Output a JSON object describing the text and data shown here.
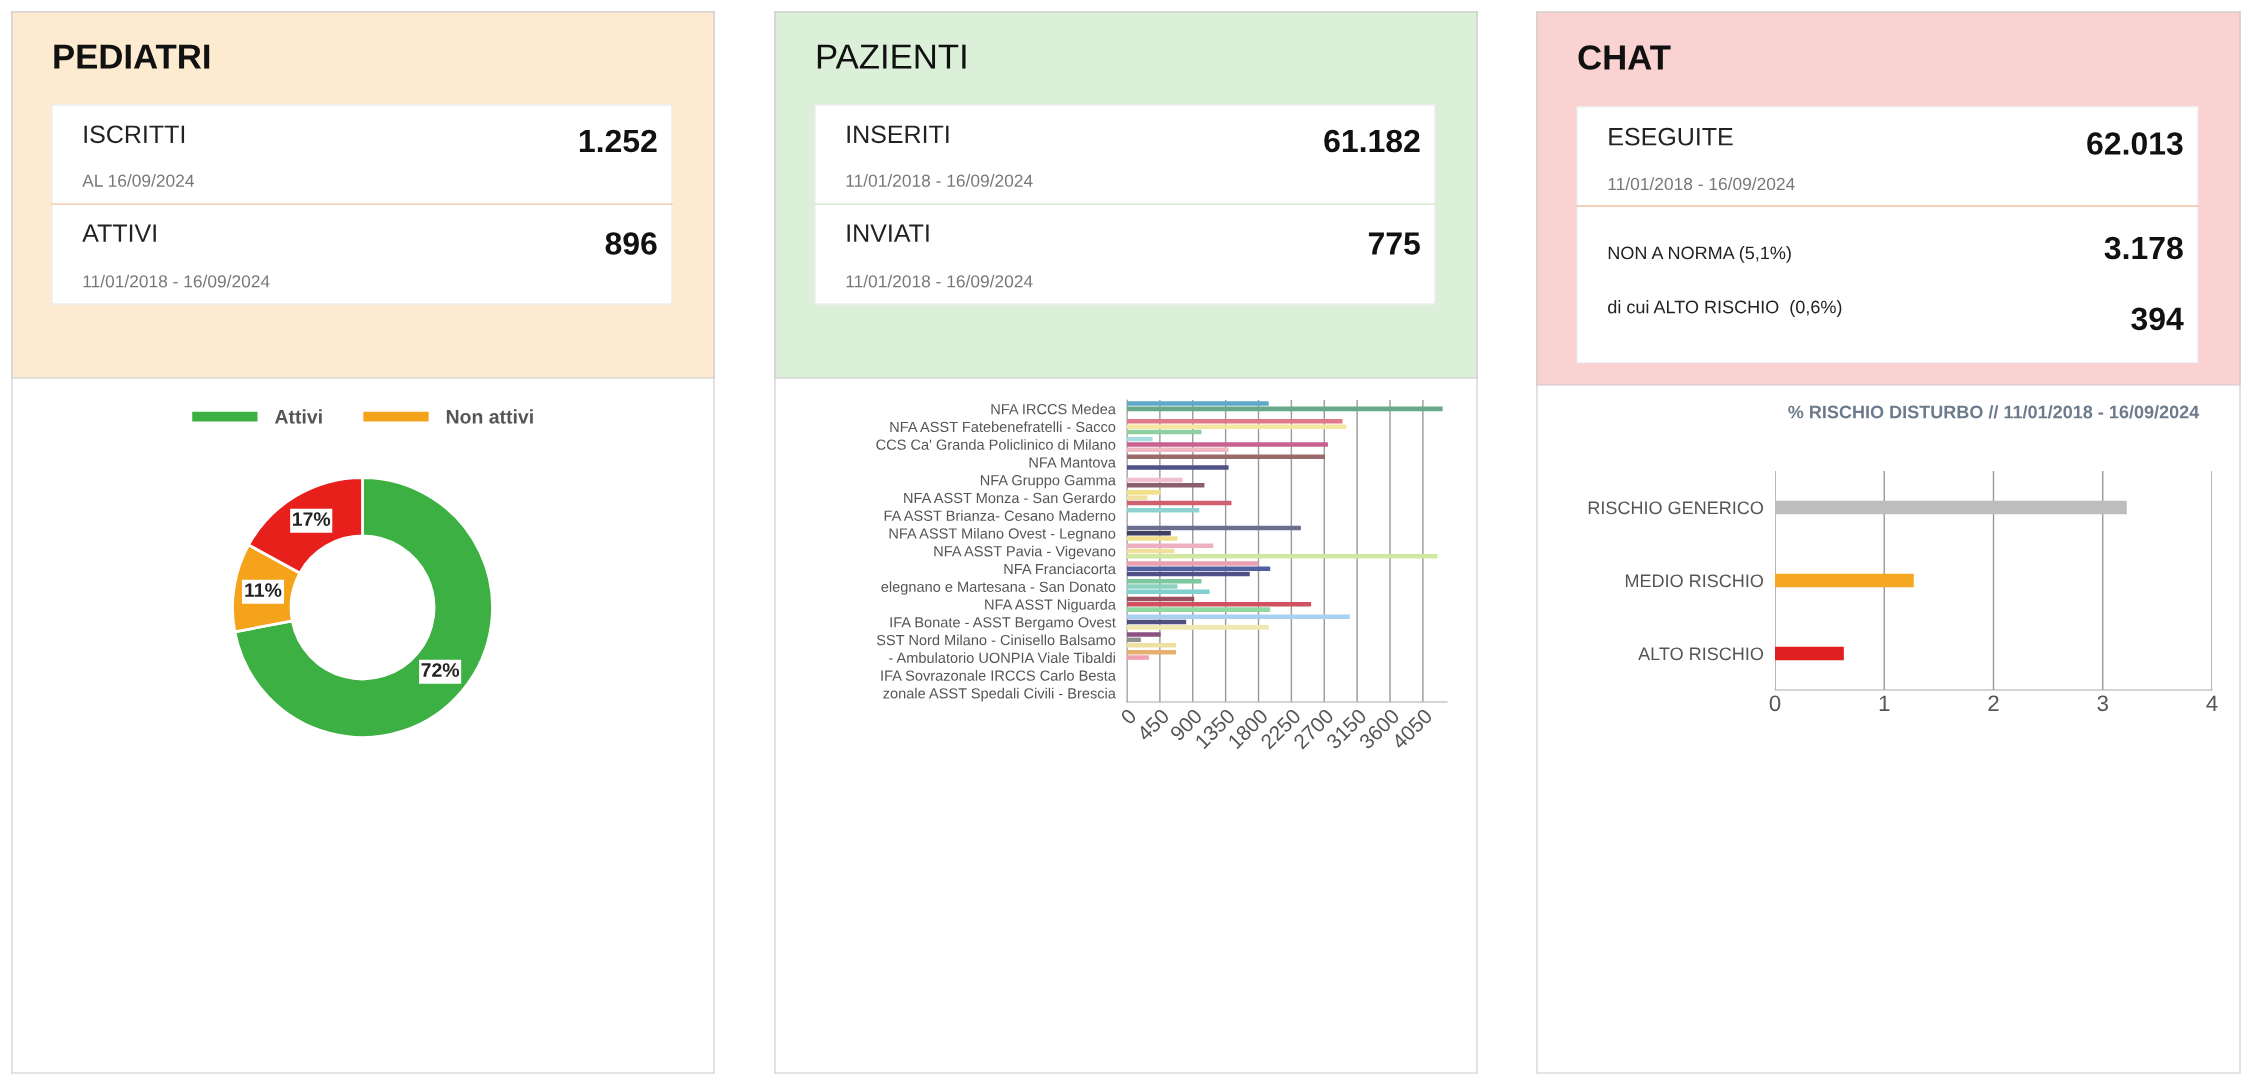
{
  "chart_data": [
    {
      "type": "other",
      "title": "PEDIATRI",
      "annotations": [
        "ISCRITTI",
        "1.252",
        "AL 16/09/2024",
        "ATTIVI",
        "896",
        "11/01/2018 - 16/09/2024"
      ]
    },
    {
      "type": "donut",
      "categories": [
        "Attivi",
        "Non attivi",
        null
      ],
      "values": [
        72,
        11,
        17
      ],
      "colors": [
        "#3cb043",
        "#f5a31a",
        "#e8201c"
      ],
      "value_labels": [
        "72%",
        "11%",
        "17%"
      ],
      "legend": "top"
    },
    {
      "type": "other",
      "title": "PAZIENTI",
      "annotations": [
        "INSERITI",
        "61.182",
        "11/01/2018 - 16/09/2024",
        "INVIATI",
        "775",
        "11/01/2018 - 16/09/2024"
      ]
    },
    {
      "type": "bar",
      "orientation": "horizontal",
      "categories": [
        "NFA IRCCS Medea",
        "NFA ASST Fatebenefratelli - Sacco",
        "CCS Ca' Granda Policlinico di Milano",
        "NFA Mantova",
        "NFA Gruppo Gamma",
        "NFA ASST Monza - San Gerardo",
        "FA ASST Brianza- Cesano Maderno",
        "NFA ASST Milano Ovest - Legnano",
        "NFA ASST Pavia - Vigevano",
        "NFA Franciacorta",
        "elegnano e Martesana - San Donato",
        "NFA ASST Niguarda",
        "IFA Bonate - ASST Bergamo Ovest",
        "SST Nord Milano - Cinisello Balsamo",
        "- Ambulatorio UONPIA Viale Tibaldi",
        "IFA Sovrazonale IRCCS Carlo Besta",
        "zonale ASST Spedali Civili - Brescia"
      ],
      "series": [
        {
          "values": [
            1940,
            2950,
            350,
            2710,
            null,
            460,
            990,
            2380,
            1180,
            1800,
            1020,
            920,
            3050,
            460,
            670,
            null,
            null
          ],
          "colors": [
            "#5fa8c8",
            "#e07a8a",
            "#a8dde0",
            "#9b6b6b",
            "#cccccc",
            "#f3e08a",
            "#8fd3d0",
            "#6b6f8f",
            "#eeb0c0",
            "#e8a0b0",
            "#7cc8a0",
            "#9b5060",
            "#a8d0f0",
            "#8a5080",
            "#e8b070",
            "#cccccc",
            "#cccccc"
          ]
        },
        {
          "values": [
            4320,
            3000,
            2750,
            null,
            760,
            280,
            null,
            600,
            650,
            1960,
            690,
            2520,
            810,
            190,
            300,
            null,
            null
          ],
          "colors": [
            "#6aa88a",
            "#f5e6a0",
            "#c86090",
            "#cccccc",
            "#f0c0d0",
            "#f0e0a0",
            "#cccccc",
            "#404060",
            "#f0e0a0",
            "#5060a0",
            "#8cd0c0",
            "#d05060",
            "#505080",
            "#909090",
            "#f0a0b0",
            "#cccccc",
            "#cccccc"
          ]
        },
        {
          "values": [
            null,
            1020,
            1390,
            1390,
            1060,
            1430,
            null,
            690,
            4250,
            1680,
            1130,
            1960,
            1940,
            670,
            null,
            null,
            null
          ],
          "colors": [
            "#cccccc",
            "#90d0a0",
            "#f0b8c0",
            "#505088",
            "#8a6070",
            "#d06070",
            "#cccccc",
            "#f0e090",
            "#d0e8a0",
            "#505088",
            "#80d0d0",
            "#90d8a0",
            "#f0e8b0",
            "#f0e0a0",
            "#cccccc",
            "#cccccc",
            "#cccccc"
          ]
        }
      ],
      "xlim": [
        0,
        4380
      ],
      "xticks": [
        0,
        450,
        900,
        1350,
        1800,
        2250,
        2700,
        3150,
        3600,
        4050
      ],
      "grid": "x"
    },
    {
      "type": "other",
      "title": "CHAT",
      "annotations": [
        "ESEGUITE",
        "62.013",
        "11/01/2018 - 16/09/2024",
        "NON A NORMA (5,1%)",
        "3.178",
        "di cui ALTO RISCHIO  (0,6%)",
        "394"
      ]
    },
    {
      "type": "bar",
      "orientation": "horizontal",
      "title": "% RISCHIO DISTURBO // 11/01/2018 - 16/09/2024",
      "categories": [
        "RISCHIO GENERICO",
        "MEDIO RISCHIO",
        "ALTO RISCHIO"
      ],
      "values": [
        3.22,
        1.27,
        0.63
      ],
      "colors": [
        "#bdbdbd",
        "#f5a623",
        "#e02020"
      ],
      "xlim": [
        0,
        4
      ],
      "xticks": [
        0,
        1,
        2,
        3,
        4
      ],
      "grid": "x"
    }
  ]
}
